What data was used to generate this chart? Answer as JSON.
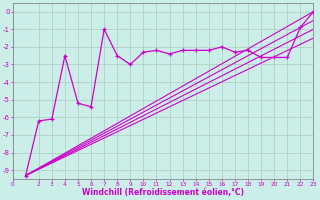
{
  "bg_color": "#cceee8",
  "line_color": "#cc00cc",
  "grid_color": "#aaccbb",
  "xlabel": "Windchill (Refroidissement éolien,°C)",
  "xlim": [
    0,
    23
  ],
  "ylim": [
    -9.5,
    0.5
  ],
  "yticks": [
    0,
    -1,
    -2,
    -3,
    -4,
    -5,
    -6,
    -7,
    -8,
    -9
  ],
  "xticks": [
    0,
    2,
    3,
    4,
    5,
    6,
    7,
    8,
    9,
    10,
    11,
    12,
    13,
    14,
    15,
    16,
    17,
    18,
    19,
    20,
    21,
    22,
    23
  ],
  "main_x": [
    1,
    2,
    3,
    4,
    5,
    6,
    7,
    8,
    9,
    10,
    11,
    12,
    13,
    14,
    15,
    16,
    17,
    18,
    19,
    20,
    21,
    22,
    23
  ],
  "main_y": [
    -9.3,
    -6.2,
    -6.1,
    -2.5,
    -5.2,
    -5.4,
    -1.0,
    -2.5,
    -3.0,
    -2.3,
    -2.2,
    -2.4,
    -2.2,
    -2.2,
    -2.2,
    -2.0,
    -2.3,
    -2.2,
    -2.6,
    -2.6,
    -2.6,
    -0.9,
    0.0
  ],
  "trend_lines": [
    {
      "x": [
        1,
        23
      ],
      "y": [
        -9.3,
        0.0
      ]
    },
    {
      "x": [
        1,
        23
      ],
      "y": [
        -9.3,
        -0.5
      ]
    },
    {
      "x": [
        1,
        23
      ],
      "y": [
        -9.3,
        -1.0
      ]
    },
    {
      "x": [
        1,
        23
      ],
      "y": [
        -9.3,
        -1.5
      ]
    }
  ]
}
